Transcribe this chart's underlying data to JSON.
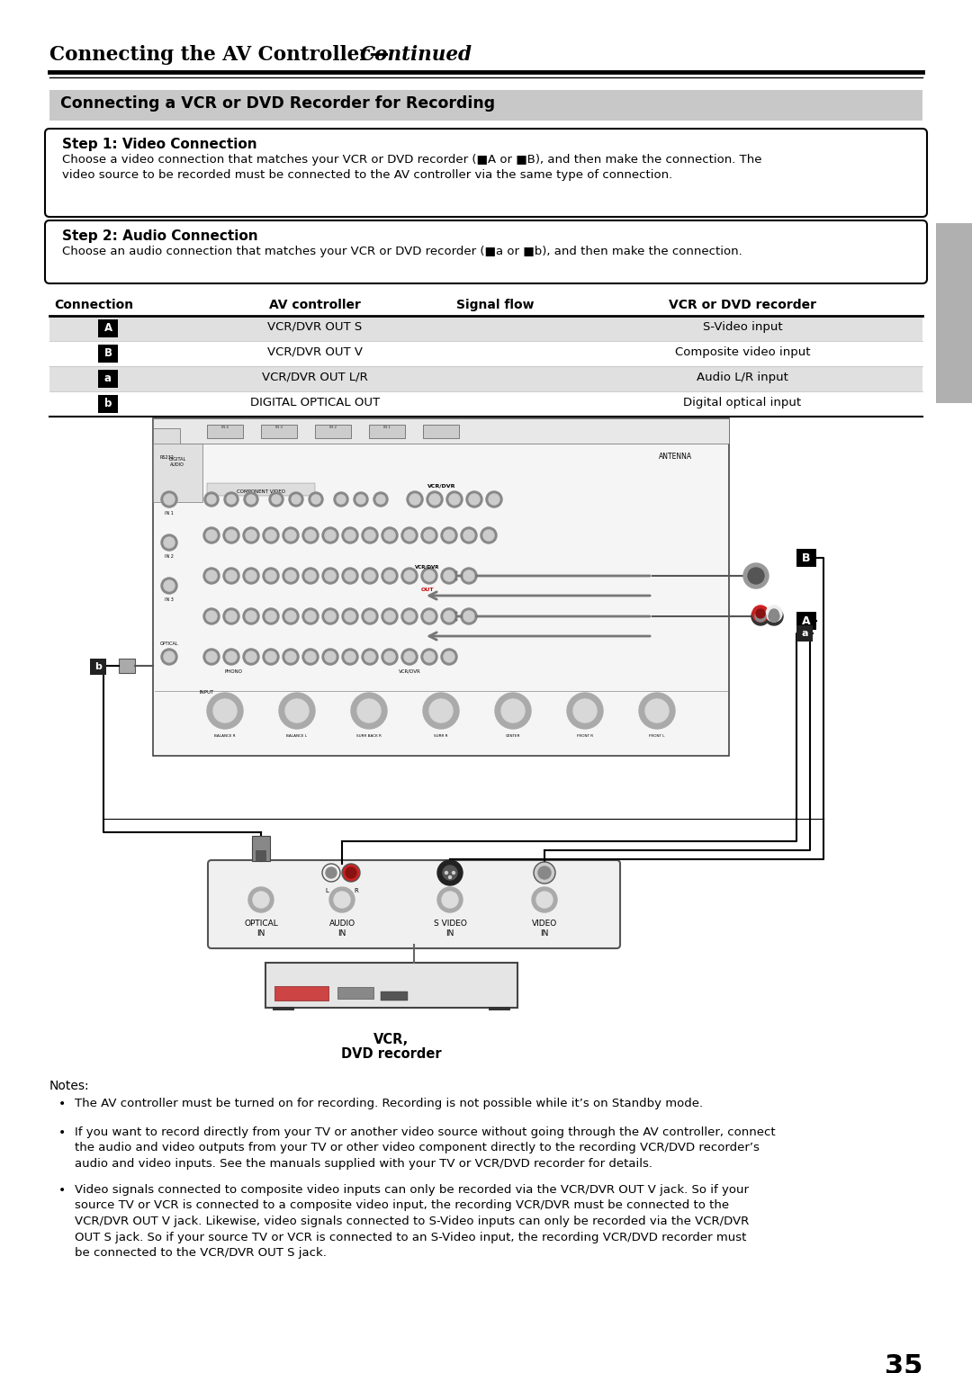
{
  "title_normal": "Connecting the AV Controller—",
  "title_italic": "Continued",
  "section_title": "Connecting a VCR or DVD Recorder for Recording",
  "step1_title": "Step 1: Video Connection",
  "step1_line1": "Choose a video connection that matches your VCR or DVD recorder (■A or ■B), and then make the connection. The",
  "step1_line2": "video source to be recorded must be connected to the AV controller via the same type of connection.",
  "step2_title": "Step 2: Audio Connection",
  "step2_line1": "Choose an audio connection that matches your VCR or DVD recorder (■a or ■b), and then make the connection.",
  "table_headers": [
    "Connection",
    "AV controller",
    "Signal flow",
    "VCR or DVD recorder"
  ],
  "table_rows": [
    [
      "A",
      "VCR/DVR OUT S",
      "",
      "S-Video input"
    ],
    [
      "B",
      "VCR/DVR OUT V",
      "",
      "Composite video input"
    ],
    [
      "a",
      "VCR/DVR OUT L/R",
      "",
      "Audio L/R input"
    ],
    [
      "b",
      "DIGITAL OPTICAL OUT",
      "",
      "Digital optical input"
    ]
  ],
  "vcr_label1": "VCR,",
  "vcr_label2": "DVD recorder",
  "notes_title": "Notes:",
  "note1": "The AV controller must be turned on for recording. Recording is not possible while it’s on Standby mode.",
  "note2": "If you want to record directly from your TV or another video source without going through the AV controller, connect\nthe audio and video outputs from your TV or other video component directly to the recording VCR/DVD recorder’s\naudio and video inputs. See the manuals supplied with your TV or VCR/DVD recorder for details.",
  "note3": "Video signals connected to composite video inputs can only be recorded via the VCR/DVR OUT V jack. So if your\nsource TV or VCR is connected to a composite video input, the recording VCR/DVR must be connected to the\nVCR/DVR OUT V jack. Likewise, video signals connected to S-Video inputs can only be recorded via the VCR/DVR\nOUT S jack. So if your source TV or VCR is connected to an S-Video input, the recording VCR/DVD recorder must\nbe connected to the VCR/DVR OUT S jack.",
  "page_number": "35",
  "bg_color": "#ffffff",
  "section_bg": "#c8c8c8",
  "tab_shaded": "#e0e0e0",
  "sidebar_color": "#b0b0b0"
}
